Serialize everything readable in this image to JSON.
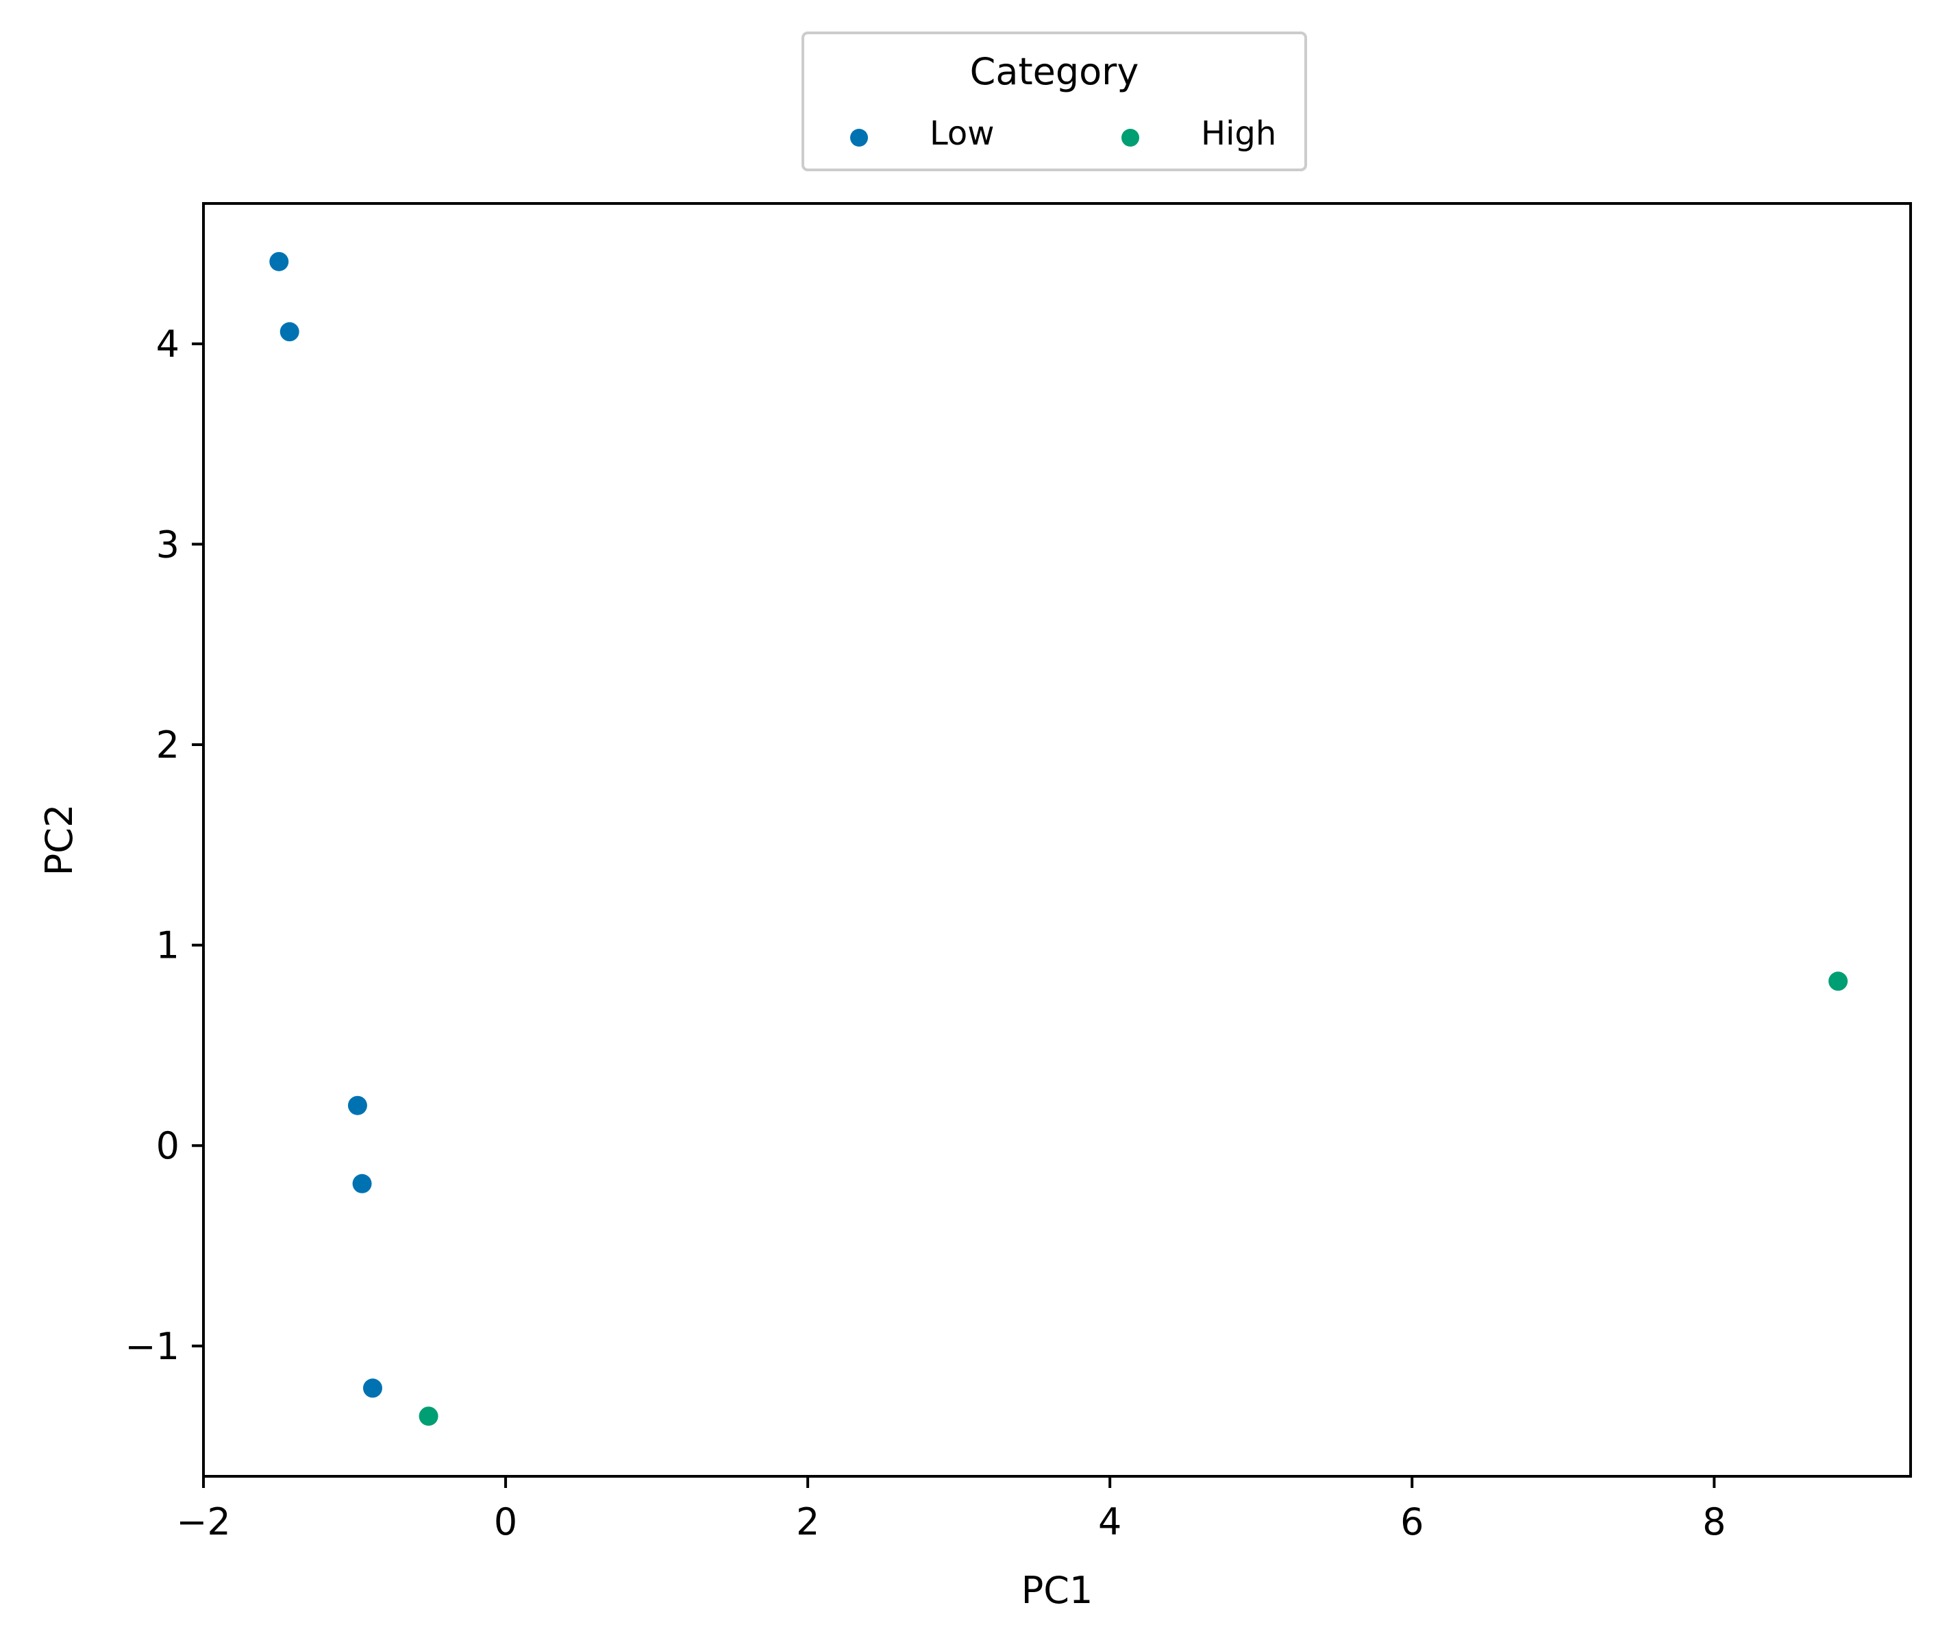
{
  "chart_data": {
    "type": "scatter",
    "xlabel": "PC1",
    "ylabel": "PC2",
    "xlim": [
      -2.0,
      9.3
    ],
    "ylim": [
      -1.65,
      4.7
    ],
    "xticks": [
      -2,
      0,
      2,
      4,
      6,
      8
    ],
    "yticks": [
      -1,
      0,
      1,
      2,
      3,
      4
    ],
    "xtick_labels": [
      "−2",
      "0",
      "2",
      "4",
      "6",
      "8"
    ],
    "ytick_labels": [
      "−1",
      "0",
      "1",
      "2",
      "3",
      "4"
    ],
    "grid": false,
    "legend": {
      "title": "Category",
      "placement": "top-center",
      "columns": 2
    },
    "series": [
      {
        "name": "Low",
        "color": "#0072B2",
        "points": [
          {
            "x": -1.5,
            "y": 4.41
          },
          {
            "x": -1.43,
            "y": 4.06
          },
          {
            "x": -0.98,
            "y": 0.2
          },
          {
            "x": -0.95,
            "y": -0.19
          },
          {
            "x": -0.88,
            "y": -1.21
          }
        ]
      },
      {
        "name": "High",
        "color": "#009E73",
        "points": [
          {
            "x": -0.51,
            "y": -1.35
          },
          {
            "x": 8.82,
            "y": 0.82
          }
        ]
      }
    ]
  }
}
